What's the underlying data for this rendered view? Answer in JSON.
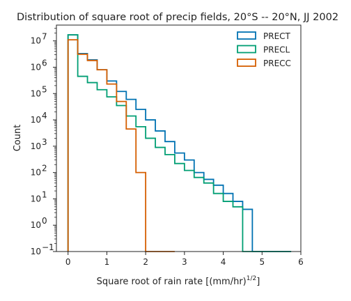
{
  "chart_data": {
    "type": "step-histogram",
    "title": "Distribution of square root of precip fields, 20°S -- 20°N, JJ 2002",
    "xlabel_main": "Square root of rain rate [(mm/hr)",
    "xlabel_sup": "1/2",
    "xlabel_end": "]",
    "ylabel": "Count",
    "xlim": [
      -0.3,
      6.0
    ],
    "ylim_log10": [
      -1,
      7.6
    ],
    "y_scale": "log",
    "xticks": [
      0,
      1,
      2,
      3,
      4,
      5,
      6
    ],
    "xtick_labels": [
      "0",
      "1",
      "2",
      "3",
      "4",
      "5",
      "6"
    ],
    "yticks_log10": [
      -1,
      0,
      1,
      2,
      3,
      4,
      5,
      6,
      7
    ],
    "ytick_mantissa": "10",
    "ytick_exponents": [
      "−1",
      "0",
      "1",
      "2",
      "3",
      "4",
      "5",
      "6",
      "7"
    ],
    "grid": false,
    "legend_position": "upper right",
    "bin_edges": [
      0,
      0.25,
      0.5,
      0.75,
      1.0,
      1.25,
      1.5,
      1.75,
      2.0,
      2.25,
      2.5,
      2.75,
      3.0,
      3.25,
      3.5,
      3.75,
      4.0,
      4.25,
      4.5,
      4.75,
      5.0,
      5.25,
      5.5,
      5.75
    ],
    "series": [
      {
        "name": "PRECT",
        "color": "#0072b2",
        "counts": [
          17000000,
          3300000,
          1900000,
          800000,
          300000,
          120000,
          60000,
          25000,
          10000,
          3800,
          1500,
          550,
          300,
          100,
          55,
          33,
          16,
          8,
          4,
          0.1,
          0.1,
          0.1,
          0.1
        ]
      },
      {
        "name": "PRECL",
        "color": "#009e73",
        "counts": [
          17000000,
          450000,
          260000,
          140000,
          75000,
          35000,
          14000,
          5500,
          2000,
          900,
          480,
          220,
          120,
          65,
          40,
          16,
          8,
          5,
          0.1,
          0.1,
          0.1,
          0.1,
          0.1
        ]
      },
      {
        "name": "PRECC",
        "color": "#d55e00",
        "counts": [
          11000000,
          3100000,
          1800000,
          800000,
          230000,
          50000,
          4500,
          100,
          0.1,
          0.1,
          0.1,
          null,
          null,
          null,
          null,
          null,
          null,
          null,
          null,
          null,
          null,
          null,
          null
        ]
      }
    ]
  }
}
